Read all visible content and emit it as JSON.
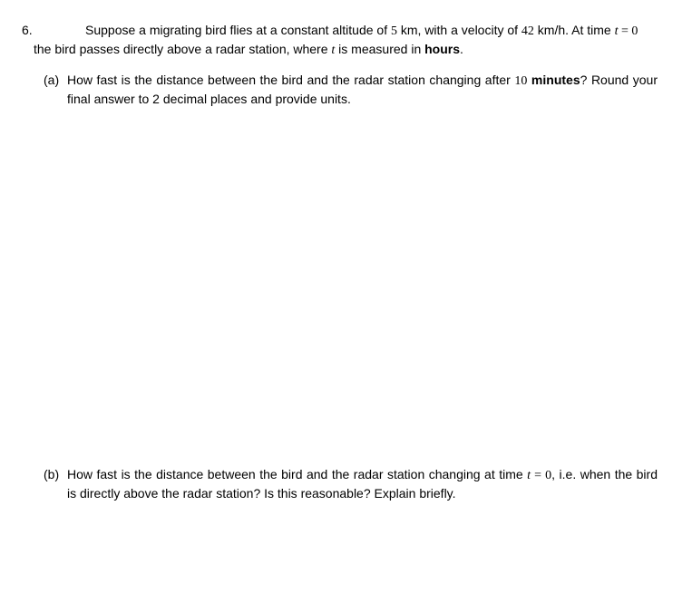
{
  "problem": {
    "number": "6.",
    "intro_part1": "Suppose a migrating bird flies at a constant altitude of ",
    "altitude": "5",
    "altitude_unit": " km, with a velocity of ",
    "velocity": "42",
    "velocity_unit": " km/h. At time ",
    "time_var": "t",
    "equals_zero": " = 0",
    "intro_line2_part1": "the bird passes directly above a radar station, where ",
    "time_var2": "t",
    "intro_line2_part2": " is measured in ",
    "hours_bold": "hours",
    "intro_line2_end": "."
  },
  "part_a": {
    "label": "(a)",
    "text_1": "How fast is the distance between the bird and the radar station changing after ",
    "ten": "10",
    "minutes_bold": " minutes",
    "text_2": "? Round your final answer to 2 decimal places and provide units."
  },
  "part_b": {
    "label": "(b)",
    "text_1": "How fast is the distance between the bird and the radar station changing at time ",
    "time_var": "t",
    "equals_zero": " = 0",
    "text_2": ", i.e. when the bird is directly above the radar station? Is this reasonable? Explain briefly."
  },
  "colors": {
    "background": "#ffffff",
    "text": "#000000"
  },
  "typography": {
    "body_fontsize": 14,
    "body_family": "Arial, Helvetica, sans-serif",
    "math_family": "Times New Roman, serif"
  }
}
